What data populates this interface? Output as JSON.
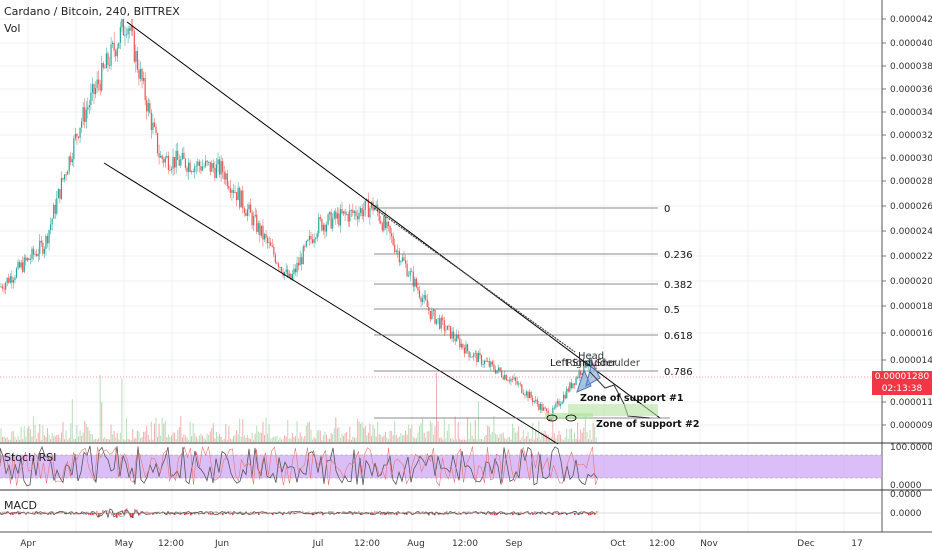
{
  "header": {
    "symbol_line": "Cardano / Bitcoin, 240, BITTREX",
    "vol_label": "Vol"
  },
  "price_badges": {
    "last_price": "0.00001280",
    "countdown": "02:13:38",
    "badge_color": "#f23645"
  },
  "panels": {
    "stoch_rsi_label": "Stoch RSI",
    "macd_label": "MACD"
  },
  "chart_data": {
    "type": "candlestick",
    "y_ticks": [
      "0.00004200",
      "0.00004000",
      "0.00003800",
      "0.00003600",
      "0.00003400",
      "0.00003200",
      "0.00003000",
      "0.00002800",
      "0.00002600",
      "0.00002400",
      "0.00002200",
      "0.00002000",
      "0.00001800",
      "0.00001600",
      "0.00001400",
      "0.00001100",
      "0.00000940"
    ],
    "x_ticks": [
      "Apr",
      "May",
      "12:00",
      "Jun",
      "Jul",
      "12:00",
      "Aug",
      "12:00",
      "Sep",
      "Oct",
      "12:00",
      "Nov",
      "Dec",
      "17"
    ],
    "rsi_ticks": [
      "100.0000",
      "0.0000"
    ],
    "macd_ticks": [
      "0.0000",
      "0.0000"
    ],
    "price_series_key_points": [
      {
        "x": "Apr",
        "y": 1.95e-05
      },
      {
        "x": "Apr (late)",
        "y": 2.3e-05
      },
      {
        "x": "Apr (end)",
        "y": 3.3e-05
      },
      {
        "x": "May",
        "y": 4.2e-05
      },
      {
        "x": "May (mid)",
        "y": 3e-05
      },
      {
        "x": "Jun",
        "y": 2.9e-05
      },
      {
        "x": "Jun (end)",
        "y": 2e-05
      },
      {
        "x": "Jul",
        "y": 2.45e-05
      },
      {
        "x": "Jul 12:00",
        "y": 2.6e-05
      },
      {
        "x": "Aug",
        "y": 1.75e-05
      },
      {
        "x": "Aug 12:00",
        "y": 1.45e-05
      },
      {
        "x": "Sep",
        "y": 1.25e-05
      },
      {
        "x": "Sep (mid)",
        "y": 1e-05
      },
      {
        "x": "Sep (late)",
        "y": 1.4e-05
      },
      {
        "x": "Sep (end)",
        "y": 1.28e-05
      }
    ],
    "fib_levels": [
      {
        "label": "0",
        "value": 2.6e-05
      },
      {
        "label": "0.236",
        "value": 2.19e-05
      },
      {
        "label": "0.382",
        "value": 1.94e-05
      },
      {
        "label": "0.5",
        "value": 1.73e-05
      },
      {
        "label": "0.618",
        "value": 1.52e-05
      },
      {
        "label": "0.786",
        "value": 1.23e-05
      }
    ],
    "annotations": [
      {
        "text": "Head"
      },
      {
        "text": "Left Shoulder"
      },
      {
        "text": "Right Shoulder"
      },
      {
        "text": "Zone of support #1"
      },
      {
        "text": "Zone of support #2"
      }
    ],
    "colors": {
      "up": "#26a69a",
      "down": "#ef5350",
      "rsi_fill": "#cfa8f5",
      "macd_hist": "#e53935",
      "price_line": "#f23645"
    }
  }
}
